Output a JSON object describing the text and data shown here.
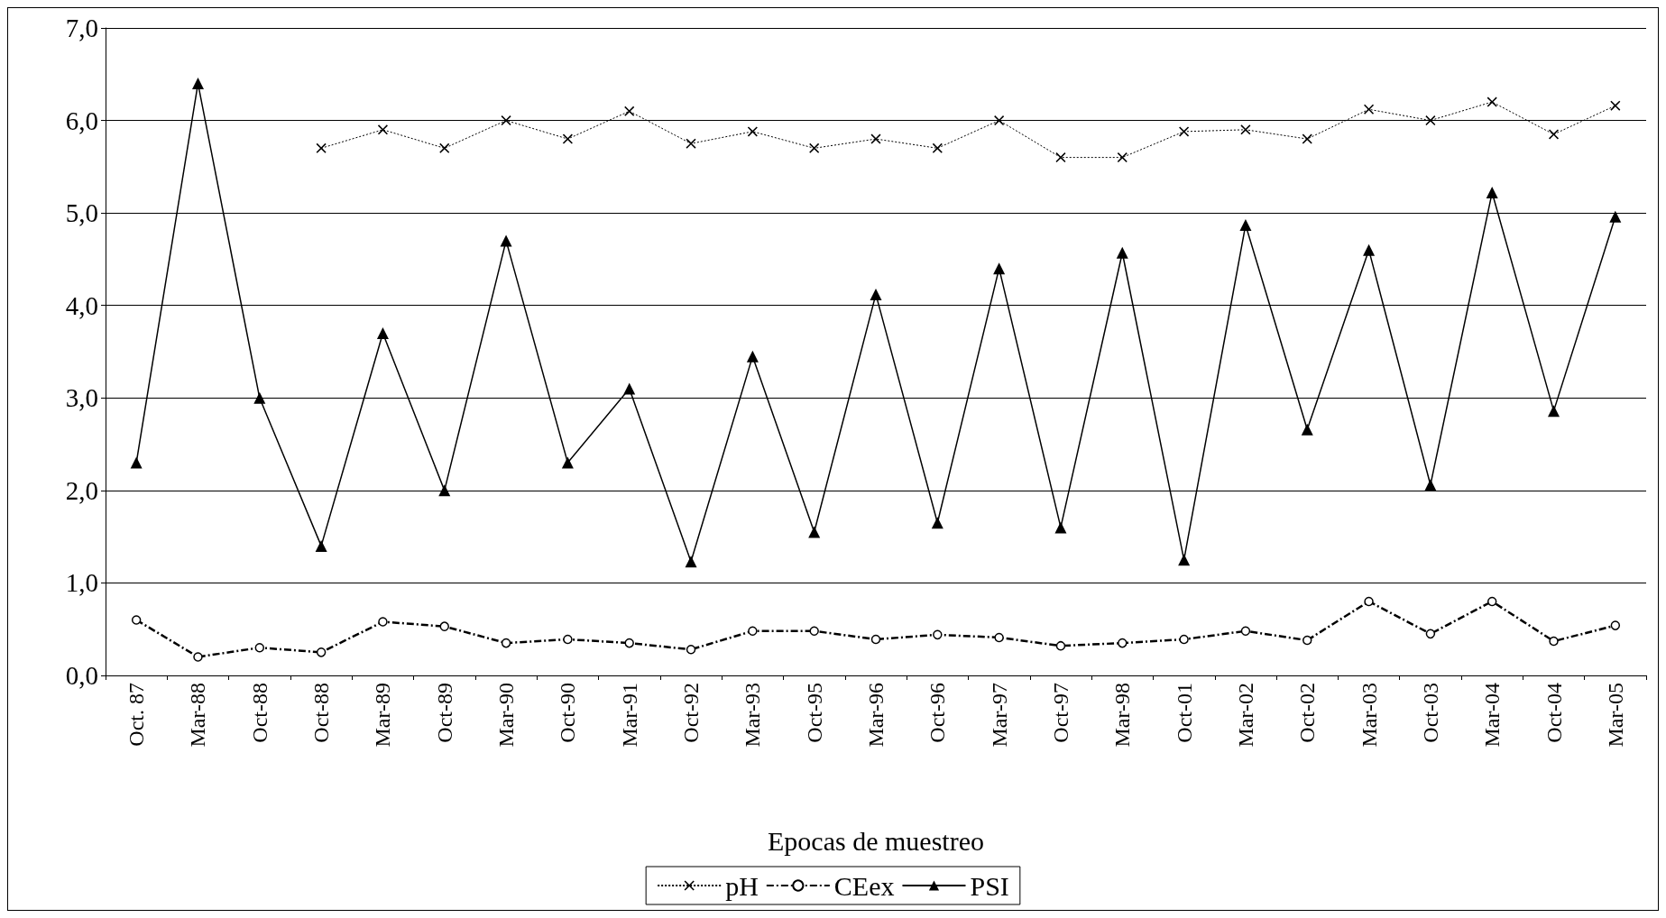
{
  "chart_data": {
    "type": "line",
    "xlabel": "Epocas de muestreo",
    "categories": [
      "Oct. 87",
      "Mar-88",
      "Oct-88",
      "Oct-88",
      "Mar-89",
      "Oct-89",
      "Mar-90",
      "Oct-90",
      "Mar-91",
      "Oct-92",
      "Mar-93",
      "Oct-95",
      "Mar-96",
      "Oct-96",
      "Mar-97",
      "Oct-97",
      "Mar-98",
      "Oct-01",
      "Mar-02",
      "Oct-02",
      "Mar-03",
      "Oct-03",
      "Mar-04",
      "Oct-04",
      "Mar-05"
    ],
    "ylim": [
      0,
      7
    ],
    "yticks": [
      {
        "value": 0,
        "label": "0,0"
      },
      {
        "value": 1,
        "label": "1,0"
      },
      {
        "value": 2,
        "label": "2,0"
      },
      {
        "value": 3,
        "label": "3,0"
      },
      {
        "value": 4,
        "label": "4,0"
      },
      {
        "value": 5,
        "label": "5,0"
      },
      {
        "value": 6,
        "label": "6,0"
      },
      {
        "value": 7,
        "label": "7,0"
      }
    ],
    "grid": "y",
    "legend": "bottom",
    "series": [
      {
        "name": "pH",
        "color": "#000000",
        "marker": "cross",
        "line_style": "dotted",
        "values": [
          null,
          null,
          null,
          5.7,
          5.9,
          5.7,
          6.0,
          5.8,
          6.1,
          5.75,
          5.88,
          5.7,
          5.8,
          5.7,
          6.0,
          5.6,
          5.6,
          5.88,
          5.9,
          5.8,
          6.12,
          6.0,
          6.2,
          5.85,
          6.16
        ]
      },
      {
        "name": "CEex",
        "color": "#000000",
        "marker": "circle",
        "line_style": "dashed",
        "values": [
          0.6,
          0.2,
          0.3,
          0.25,
          0.58,
          0.53,
          0.35,
          0.39,
          0.35,
          0.28,
          0.48,
          0.48,
          0.39,
          0.44,
          0.41,
          0.32,
          0.35,
          0.39,
          0.48,
          0.38,
          0.8,
          0.45,
          0.8,
          0.37,
          0.54
        ]
      },
      {
        "name": "PSI",
        "color": "#000000",
        "marker": "triangle",
        "line_style": "solid",
        "values": [
          2.3,
          6.4,
          3.0,
          1.4,
          3.7,
          2.0,
          4.7,
          2.3,
          3.1,
          1.23,
          3.45,
          1.55,
          4.12,
          1.65,
          4.4,
          1.6,
          4.57,
          1.25,
          4.87,
          2.66,
          4.6,
          2.06,
          5.22,
          2.86,
          4.96
        ]
      }
    ]
  }
}
